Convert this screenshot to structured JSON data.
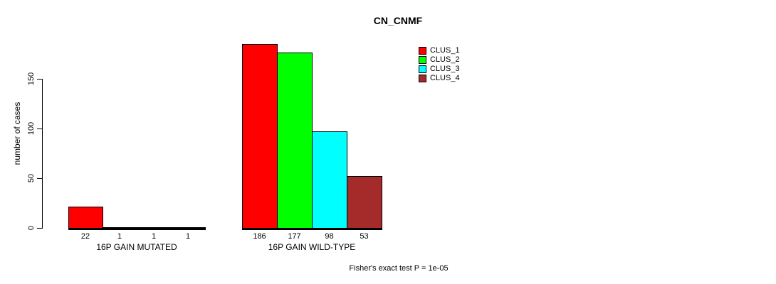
{
  "chart_data": {
    "type": "bar",
    "title": "CN_CNMF",
    "ylabel": "number of cases",
    "ylim": [
      0,
      150
    ],
    "yticks": [
      0,
      50,
      100,
      150
    ],
    "grid": false,
    "legend_position": "top-right",
    "series": [
      {
        "name": "CLUS_1",
        "color": "#FF0000"
      },
      {
        "name": "CLUS_2",
        "color": "#00FF00"
      },
      {
        "name": "CLUS_3",
        "color": "#00FFFF"
      },
      {
        "name": "CLUS_4",
        "color": "#A52A2A"
      }
    ],
    "groups": [
      {
        "label": "16P GAIN MUTATED",
        "values": [
          22,
          1,
          1,
          1
        ]
      },
      {
        "label": "16P GAIN WILD-TYPE",
        "values": [
          186,
          177,
          98,
          53
        ]
      }
    ],
    "annotation": "Fisher's exact test P = 1e-05"
  }
}
